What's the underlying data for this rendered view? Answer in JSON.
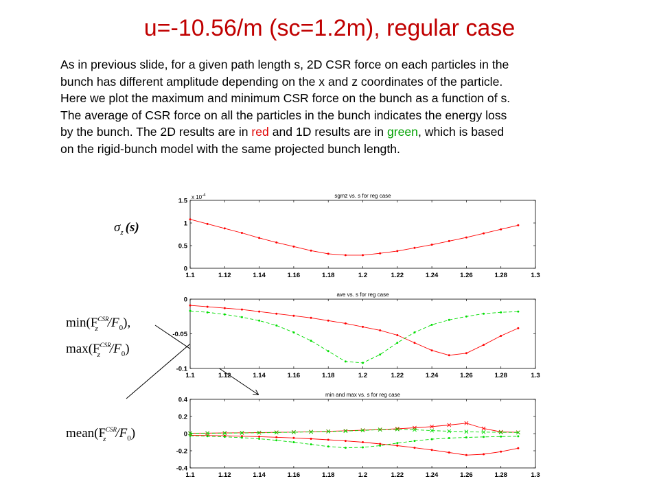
{
  "slide": {
    "title": "u=-10.56/m  (sc=1.2m), regular case",
    "paragraph": {
      "line1": "As in previous slide, for a given path length s, 2D CSR force on each particles in the",
      "line2": "bunch has different amplitude depending on the x and z coordinates of the particle.",
      "line3": "Here we plot the maximum and minimum CSR force on the bunch as a function of s.",
      "line4": "The average of CSR force on all the particles in the bunch indicates the energy loss",
      "line5_pre": "by the bunch.  The 2D results are in ",
      "line5_red": "red",
      "line5_mid": " and 1D results are in ",
      "line5_green": "green",
      "line5_post": ", which is based",
      "line6": "on the rigid-bunch model with the same projected bunch length."
    },
    "label_sigma": {
      "sym": "σ",
      "sub": "z",
      "arg": "(s)"
    },
    "label_minmax": {
      "min_pre": "min(F",
      "max_pre": "max(F",
      "mean_pre": "mean(F",
      "sup": "CSR",
      "sub_z": "z",
      "div": "/F",
      "sub_0": "0",
      "close": ")",
      "comma": ","
    },
    "colors": {
      "title": "#c00000",
      "red": "#e00000",
      "green": "#00a000",
      "series_2d": "#ff0000",
      "series_1d": "#00dd00"
    }
  },
  "chart_data": [
    {
      "type": "line",
      "title": "sgmz vs. s for reg case",
      "multiplier": "x 10",
      "multiplier_exp": "-4",
      "xlim": [
        1.1,
        1.3
      ],
      "ylim": [
        0,
        1.5
      ],
      "xticks": [
        "1.1",
        "1.12",
        "1.14",
        "1.16",
        "1.18",
        "1.2",
        "1.22",
        "1.24",
        "1.26",
        "1.28",
        "1.3"
      ],
      "yticks": [
        "0",
        "0.5",
        "1",
        "1.5"
      ],
      "x": [
        1.1,
        1.11,
        1.12,
        1.13,
        1.14,
        1.15,
        1.16,
        1.17,
        1.18,
        1.19,
        1.2,
        1.21,
        1.22,
        1.23,
        1.24,
        1.25,
        1.26,
        1.27,
        1.28,
        1.29
      ],
      "series": [
        {
          "color": "#ff0000",
          "dash": "solid",
          "marker": "dot",
          "values": [
            1.08,
            0.98,
            0.88,
            0.78,
            0.67,
            0.57,
            0.48,
            0.39,
            0.32,
            0.29,
            0.29,
            0.33,
            0.38,
            0.45,
            0.52,
            0.6,
            0.68,
            0.77,
            0.86,
            0.95
          ]
        }
      ]
    },
    {
      "type": "line",
      "title": "ave vs. s for reg case",
      "xlim": [
        1.1,
        1.3
      ],
      "ylim": [
        -0.1,
        0
      ],
      "xticks": [
        "1.1",
        "1.12",
        "1.14",
        "1.16",
        "1.18",
        "1.2",
        "1.22",
        "1.24",
        "1.26",
        "1.28",
        "1.3"
      ],
      "yticks": [
        "0",
        "-0.05",
        "-0.1"
      ],
      "ytick_values": [
        0,
        -0.05,
        -0.1
      ],
      "x": [
        1.1,
        1.11,
        1.12,
        1.13,
        1.14,
        1.15,
        1.16,
        1.17,
        1.18,
        1.19,
        1.2,
        1.21,
        1.22,
        1.23,
        1.24,
        1.25,
        1.26,
        1.27,
        1.28,
        1.29
      ],
      "series": [
        {
          "color": "#ff0000",
          "dash": "solid",
          "marker": "dot",
          "values": [
            -0.009,
            -0.011,
            -0.013,
            -0.015,
            -0.018,
            -0.021,
            -0.024,
            -0.027,
            -0.031,
            -0.035,
            -0.04,
            -0.045,
            -0.052,
            -0.063,
            -0.074,
            -0.081,
            -0.078,
            -0.066,
            -0.053,
            -0.042
          ]
        },
        {
          "color": "#00dd00",
          "dash": "dashed",
          "marker": "dot",
          "values": [
            -0.017,
            -0.019,
            -0.022,
            -0.026,
            -0.031,
            -0.038,
            -0.048,
            -0.06,
            -0.075,
            -0.09,
            -0.092,
            -0.08,
            -0.063,
            -0.048,
            -0.037,
            -0.03,
            -0.025,
            -0.021,
            -0.019,
            -0.018
          ]
        }
      ]
    },
    {
      "type": "line",
      "title": "min and max vs. s for reg case",
      "xlim": [
        1.1,
        1.3
      ],
      "ylim": [
        -0.4,
        0.4
      ],
      "xticks": [
        "1.1",
        "1.12",
        "1.14",
        "1.16",
        "1.18",
        "1.2",
        "1.22",
        "1.24",
        "1.26",
        "1.28",
        "1.3"
      ],
      "yticks": [
        "0.4",
        "0.2",
        "0",
        "-0.2",
        "-0.4"
      ],
      "ytick_values": [
        0.4,
        0.2,
        0,
        -0.2,
        -0.4
      ],
      "x": [
        1.1,
        1.11,
        1.12,
        1.13,
        1.14,
        1.15,
        1.16,
        1.17,
        1.18,
        1.19,
        1.2,
        1.21,
        1.22,
        1.23,
        1.24,
        1.25,
        1.26,
        1.27,
        1.28,
        1.29
      ],
      "series": [
        {
          "color": "#ff0000",
          "dash": "solid",
          "marker": "x",
          "values": [
            0.005,
            0.006,
            0.008,
            0.01,
            0.012,
            0.015,
            0.018,
            0.022,
            0.027,
            0.033,
            0.04,
            0.048,
            0.057,
            0.068,
            0.082,
            0.1,
            0.122,
            0.06,
            0.02,
            0.015
          ]
        },
        {
          "color": "#ff0000",
          "dash": "solid",
          "marker": "dot",
          "values": [
            -0.02,
            -0.022,
            -0.025,
            -0.03,
            -0.035,
            -0.042,
            -0.05,
            -0.06,
            -0.072,
            -0.085,
            -0.1,
            -0.12,
            -0.14,
            -0.165,
            -0.19,
            -0.22,
            -0.25,
            -0.24,
            -0.21,
            -0.17
          ]
        },
        {
          "color": "#00dd00",
          "dash": "dashed",
          "marker": "x",
          "values": [
            0.004,
            0.005,
            0.006,
            0.008,
            0.01,
            0.013,
            0.016,
            0.02,
            0.025,
            0.03,
            0.038,
            0.046,
            0.05,
            0.045,
            0.035,
            0.028,
            0.022,
            0.018,
            0.015,
            0.013
          ]
        },
        {
          "color": "#00dd00",
          "dash": "dashed",
          "marker": "dot",
          "values": [
            -0.025,
            -0.03,
            -0.037,
            -0.047,
            -0.06,
            -0.078,
            -0.1,
            -0.125,
            -0.15,
            -0.165,
            -0.16,
            -0.14,
            -0.11,
            -0.085,
            -0.065,
            -0.052,
            -0.044,
            -0.038,
            -0.034,
            -0.031
          ]
        }
      ]
    }
  ]
}
